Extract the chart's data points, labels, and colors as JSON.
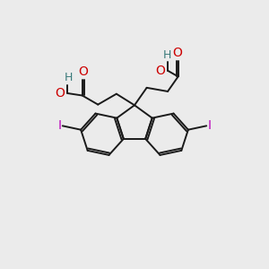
{
  "bg_color": "#ebebeb",
  "bond_color": "#1a1a1a",
  "oxygen_color": "#cc0000",
  "hydrogen_color": "#3a7a7a",
  "iodine_color": "#bb00bb",
  "bond_width": 1.4,
  "figsize": [
    3.0,
    3.0
  ],
  "dpi": 100,
  "xlim": [
    0,
    10
  ],
  "ylim": [
    0,
    10
  ]
}
